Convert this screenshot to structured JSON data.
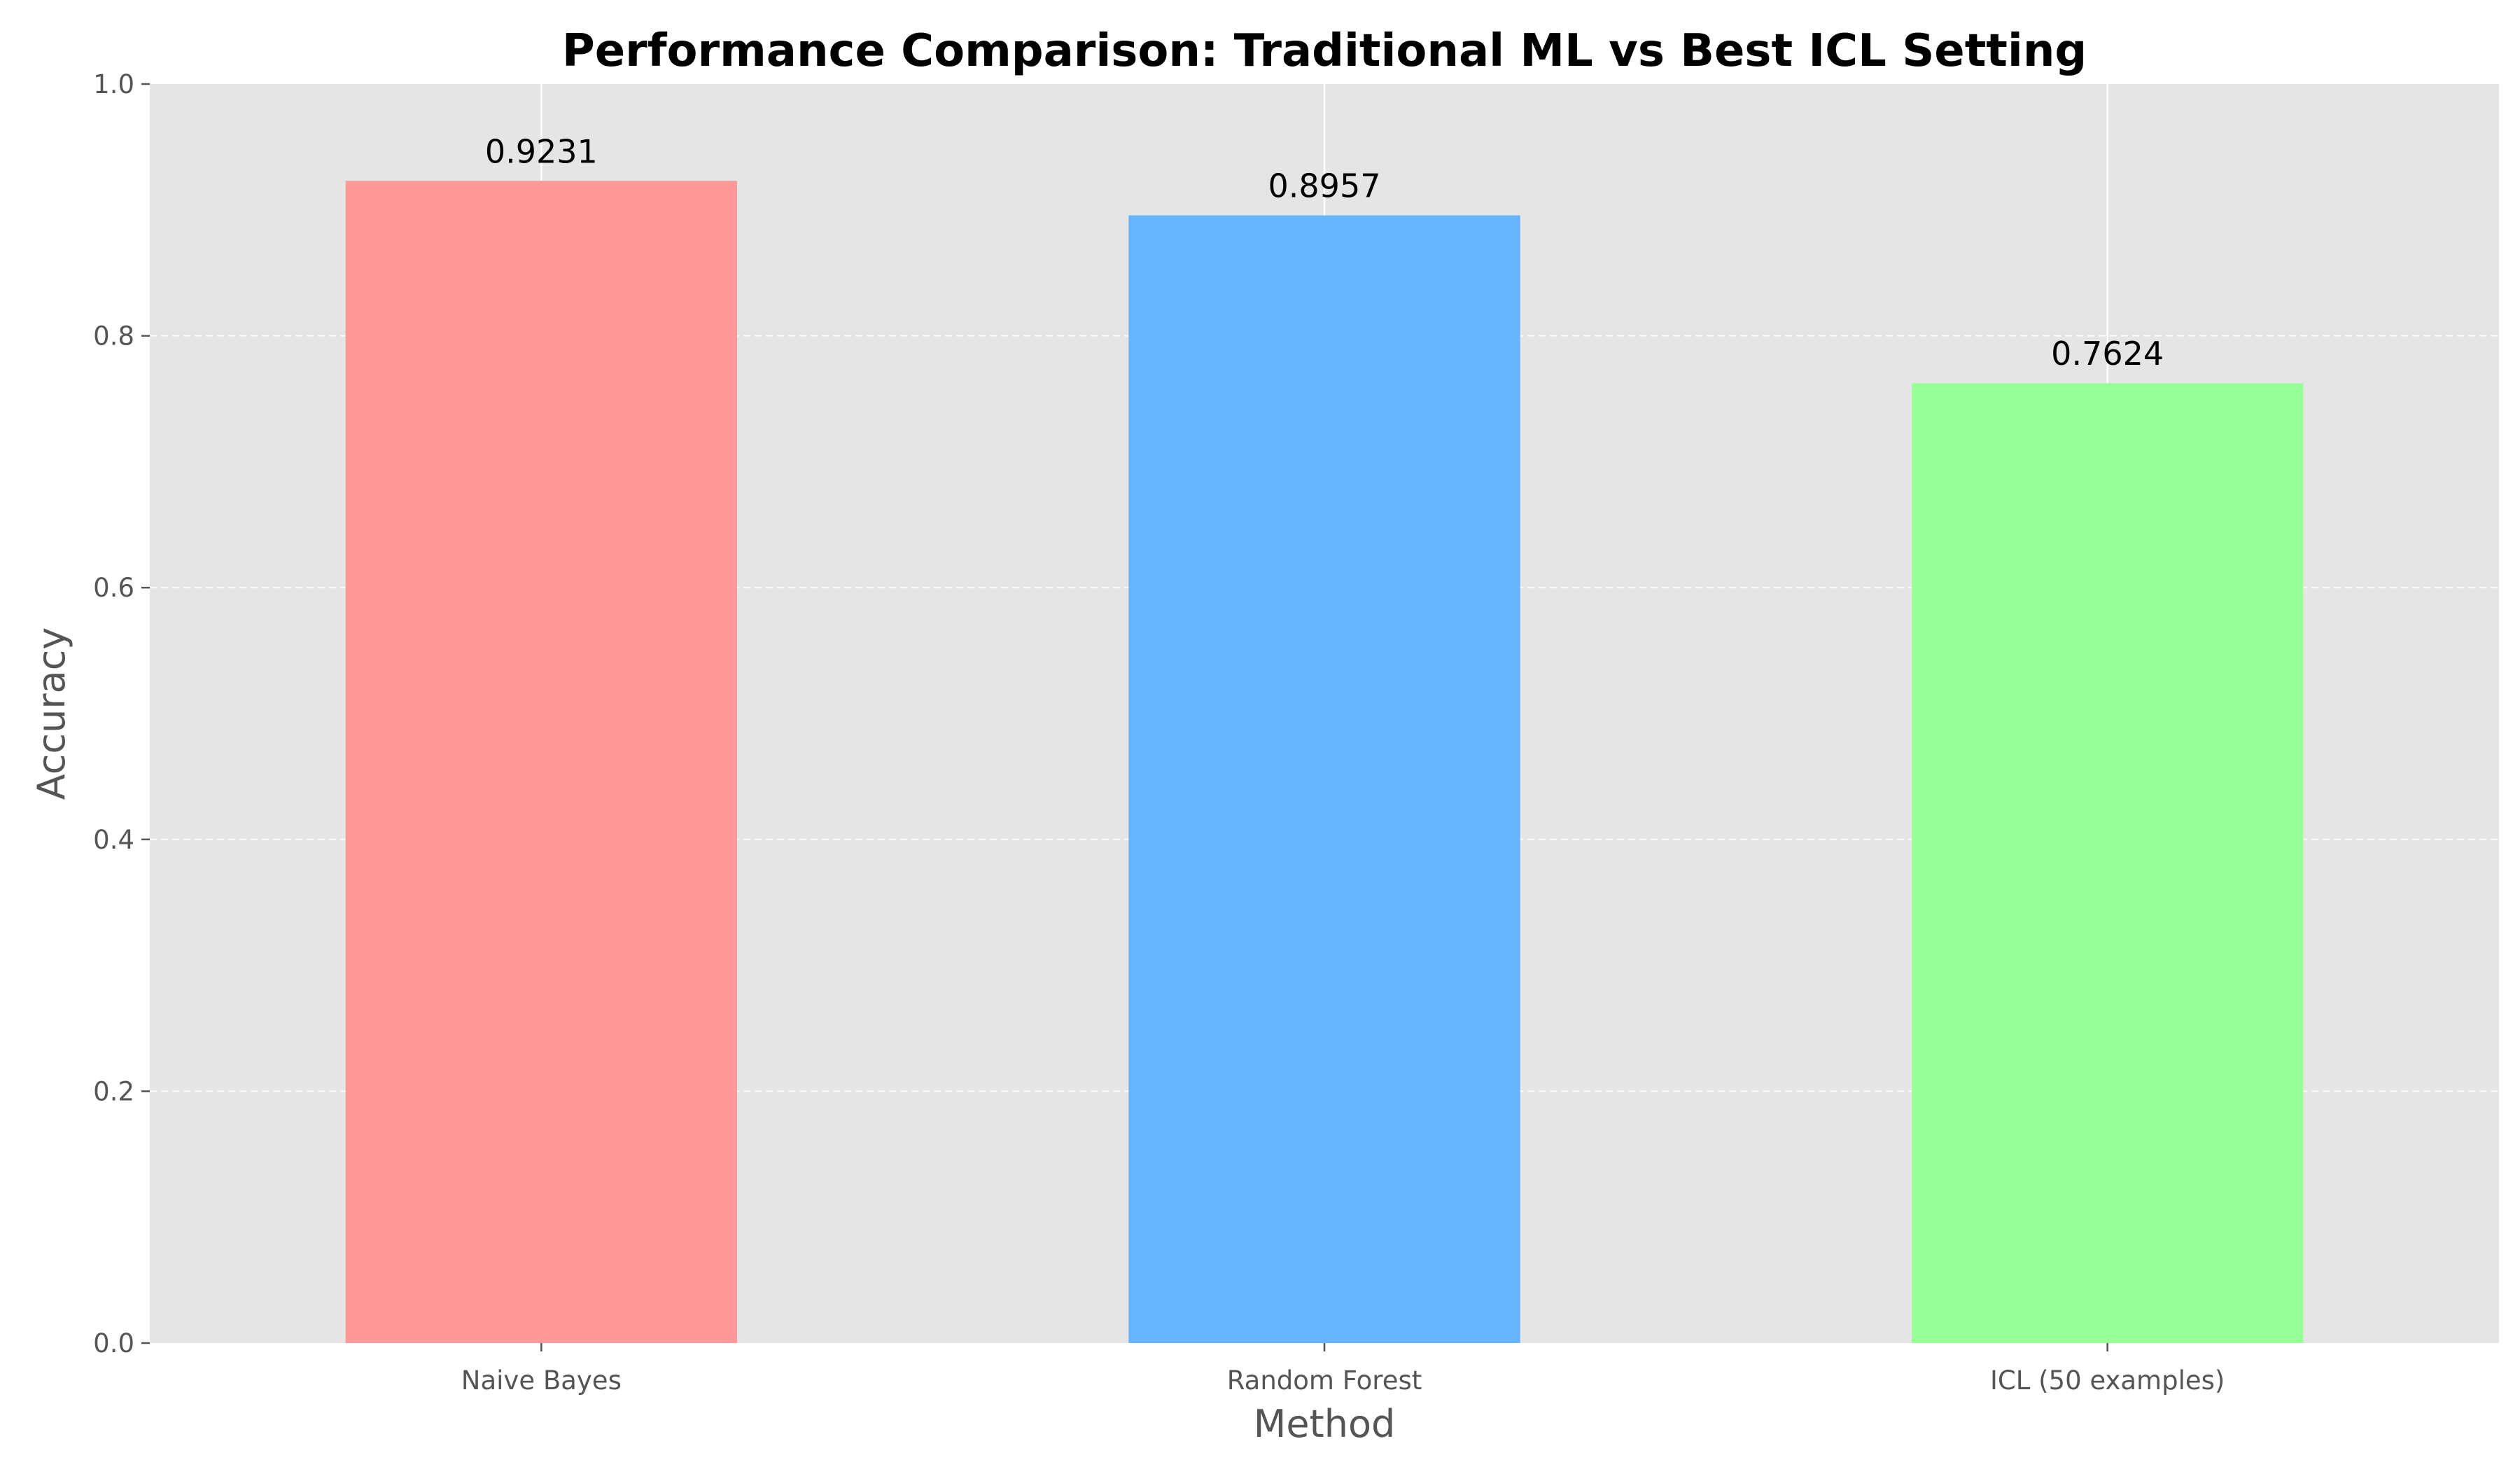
{
  "chart_data": {
    "type": "bar",
    "title": "Performance Comparison: Traditional ML vs Best ICL Setting",
    "xlabel": "Method",
    "ylabel": "Accuracy",
    "categories": [
      "Naive Bayes",
      "Random Forest",
      "ICL (50 examples)"
    ],
    "values": [
      0.9231,
      0.8957,
      0.7624
    ],
    "value_labels": [
      "0.9231",
      "0.8957",
      "0.7624"
    ],
    "colors": [
      "#ff9999",
      "#66b3ff",
      "#99ff99"
    ],
    "ylim": [
      0,
      1.0
    ],
    "yticks": [
      0.0,
      0.2,
      0.4,
      0.6,
      0.8,
      1.0
    ],
    "ytick_labels": [
      "0.0",
      "0.2",
      "0.4",
      "0.6",
      "0.8",
      "1.0"
    ],
    "grid": true,
    "grid_axis": "y",
    "grid_style": "dashed",
    "background": "#e5e5e5"
  }
}
